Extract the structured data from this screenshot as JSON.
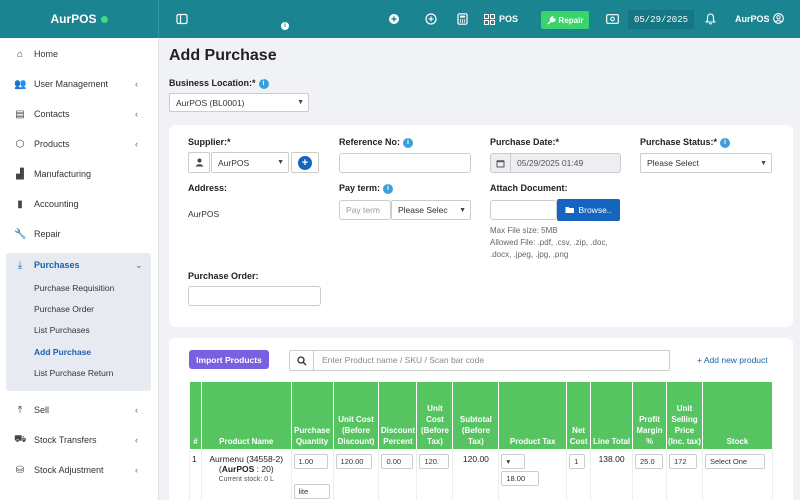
{
  "app": {
    "brand": "AurPOS"
  },
  "topbar": {
    "pos_label": "POS",
    "repair_label": "Repair",
    "date": "05/29/2025",
    "user": "AurPOS"
  },
  "sidebar": {
    "items": [
      {
        "label": "Home",
        "icon": "home-icon"
      },
      {
        "label": "User Management",
        "icon": "users-icon"
      },
      {
        "label": "Contacts",
        "icon": "contacts-icon"
      },
      {
        "label": "Products",
        "icon": "box-icon"
      },
      {
        "label": "Manufacturing",
        "icon": "factory-icon"
      },
      {
        "label": "Accounting",
        "icon": "book-icon"
      },
      {
        "label": "Repair",
        "icon": "wrench-icon"
      },
      {
        "label": "Purchases",
        "icon": "download-icon"
      },
      {
        "label": "Sell",
        "icon": "upload-icon"
      },
      {
        "label": "Stock Transfers",
        "icon": "truck-icon"
      },
      {
        "label": "Stock Adjustment",
        "icon": "database-icon"
      }
    ],
    "purchase_sub": [
      "Purchase Requisition",
      "Purchase Order",
      "List Purchases",
      "Add Purchase",
      "List Purchase Return"
    ]
  },
  "page": {
    "title": "Add Purchase",
    "business_location_label": "Business Location:*",
    "business_location_value": "AurPOS (BL0001)"
  },
  "form": {
    "supplier_label": "Supplier:*",
    "supplier_value": "AurPOS",
    "reference_label": "Reference No:",
    "purchase_date_label": "Purchase Date:*",
    "purchase_date_value": "05/29/2025 01:49",
    "purchase_status_label": "Purchase Status:*",
    "purchase_status_value": "Please Select",
    "address_label": "Address:",
    "address_value": "AurPOS",
    "pay_term_label": "Pay term:",
    "pay_term_placeholder": "Pay term",
    "pay_term_select": "Please Selec",
    "attach_label": "Attach Document:",
    "browse_label": "Browse..",
    "max_size": "Max File size: 5MB",
    "allowed_1": "Allowed File: .pdf, .csv, .zip, .doc,",
    "allowed_2": ".docx, .jpeg, .jpg, .png",
    "purchase_order_label": "Purchase Order:"
  },
  "products": {
    "import_label": "Import Products",
    "search_placeholder": "Enter Product name / SKU / Scan bar code",
    "add_new_label": "+ Add new product",
    "headers": [
      "#",
      "Product Name",
      "Purchase Quantity",
      "Unit Cost (Before Discount)",
      "Discount Percent",
      "Unit Cost (Before Tax)",
      "Subtotal (Before Tax)",
      "Product Tax",
      "Net Cost",
      "Line Total",
      "Profit Margin %",
      "Unit Selling Price (Inc. tax)",
      "Stock"
    ],
    "row": {
      "num": "1",
      "name_line1": "Aurmenu (34558-2)",
      "name_line2_bold": "AurPOS",
      "name_line2_rest": " : 20)",
      "name_line2_open": "(",
      "current_stock": "Current stock: 0 L",
      "qty": "1.00",
      "unit_select": "lite",
      "unit_cost": "120.00",
      "discount": "0.00",
      "unit_cost_before_tax": "120.",
      "subtotal": "120.00",
      "tax_amount": "18.00",
      "net_cost": "1",
      "line_total": "138.00",
      "profit_margin": "25.0",
      "selling_price": "172",
      "stock_select": "Select One"
    }
  },
  "colors": {
    "topbar": "#1a8591",
    "repair_button": "#3bd36b",
    "table_header": "#56c461",
    "import_button": "#7a5fe0",
    "browse_button": "#1565c0"
  }
}
